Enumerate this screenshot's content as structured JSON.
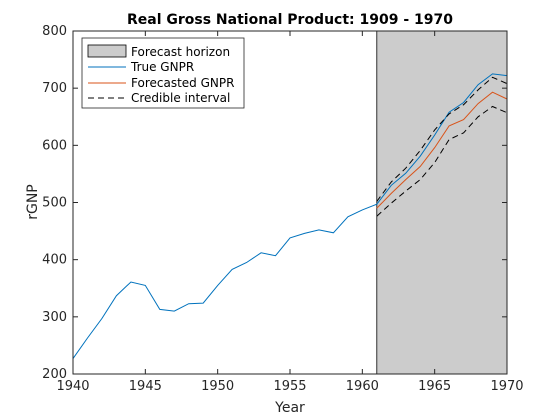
{
  "chart_data": {
    "type": "line",
    "title": "Real Gross National Product: 1909 - 1970",
    "xlabel": "Year",
    "ylabel": "rGNP",
    "xlim": [
      1940,
      1970
    ],
    "ylim": [
      200,
      800
    ],
    "xticks": [
      1940,
      1945,
      1950,
      1955,
      1960,
      1965,
      1970
    ],
    "yticks": [
      200,
      300,
      400,
      500,
      600,
      700,
      800
    ],
    "grid": false,
    "legend_position": "top-left",
    "forecast_horizon": {
      "name": "Forecast horizon",
      "x_start": 1961,
      "x_end": 1970,
      "color": "#cccccc"
    },
    "series": [
      {
        "name": "True GNPR",
        "color": "#0072bd",
        "style": "solid",
        "x": [
          1940,
          1941,
          1942,
          1943,
          1944,
          1945,
          1946,
          1947,
          1948,
          1949,
          1950,
          1951,
          1952,
          1953,
          1954,
          1955,
          1956,
          1957,
          1958,
          1959,
          1960,
          1961,
          1962,
          1963,
          1964,
          1965,
          1966,
          1967,
          1968,
          1969,
          1970
        ],
        "values": [
          227,
          263,
          297,
          337,
          361,
          355,
          313,
          310,
          323,
          324,
          355,
          383,
          395,
          412,
          407,
          438,
          446,
          452,
          447,
          475,
          487,
          497,
          530,
          551,
          581,
          618,
          658,
          675,
          706,
          725,
          722
        ]
      },
      {
        "name": "Forecasted GNPR",
        "color": "#d95319",
        "style": "solid",
        "x": [
          1961,
          1962,
          1963,
          1964,
          1965,
          1966,
          1967,
          1968,
          1969,
          1970
        ],
        "values": [
          490,
          516,
          540,
          563,
          596,
          634,
          645,
          673,
          693,
          681
        ]
      },
      {
        "name": "Credible interval",
        "color": "#000000",
        "style": "dashed",
        "x": [
          1961,
          1962,
          1963,
          1964,
          1965,
          1966,
          1967,
          1968,
          1969,
          1970
        ],
        "upper": [
          502,
          536,
          560,
          591,
          627,
          655,
          671,
          697,
          719,
          708
        ],
        "lower": [
          476,
          499,
          520,
          540,
          570,
          610,
          622,
          650,
          668,
          657
        ]
      }
    ]
  }
}
